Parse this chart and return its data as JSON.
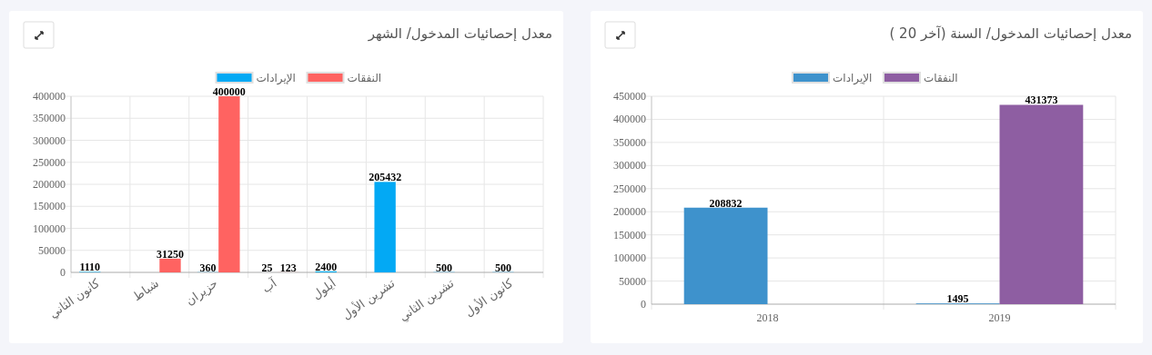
{
  "chart_data": [
    {
      "type": "bar",
      "title": "معدل إحصائيات المدخول/ الشهر",
      "categories": [
        "كانون الثاني",
        "شباط",
        "حزيران",
        "آب",
        "أيلول",
        "تشرين الأول",
        "تشرين الثاني",
        "كانون الأول"
      ],
      "series": [
        {
          "name": "الإيرادات",
          "color": "#03a9f4",
          "values": [
            1110,
            null,
            360,
            25,
            2400,
            205432,
            500,
            500
          ],
          "value_labels": [
            "1110",
            null,
            "360",
            "25",
            "2400",
            "205432",
            "500",
            "500"
          ]
        },
        {
          "name": "النفقات",
          "color": "#ff6361",
          "values": [
            null,
            31250,
            400000,
            123,
            null,
            null,
            null,
            null
          ],
          "value_labels": [
            null,
            "31250",
            "400000",
            "123",
            null,
            null,
            null,
            null
          ]
        }
      ],
      "ylim": [
        0,
        400000
      ],
      "yticks": [
        0,
        50000,
        100000,
        150000,
        200000,
        250000,
        300000,
        350000,
        400000
      ],
      "grid": true,
      "legend": "top"
    },
    {
      "type": "bar",
      "title": "معدل إحصائيات المدخول/ السنة (آخر 20 )",
      "categories": [
        "2018",
        "2019"
      ],
      "series": [
        {
          "name": "الإيرادات",
          "color": "#3e92cc",
          "values": [
            208832,
            1495
          ],
          "value_labels": [
            "208832",
            "1495"
          ]
        },
        {
          "name": "النفقات",
          "color": "#8e5ea2",
          "values": [
            null,
            431373
          ],
          "value_labels": [
            null,
            "431373"
          ]
        }
      ],
      "ylim": [
        0,
        450000
      ],
      "yticks": [
        0,
        50000,
        100000,
        150000,
        200000,
        250000,
        300000,
        350000,
        400000,
        450000
      ],
      "grid": true,
      "legend": "top"
    }
  ]
}
